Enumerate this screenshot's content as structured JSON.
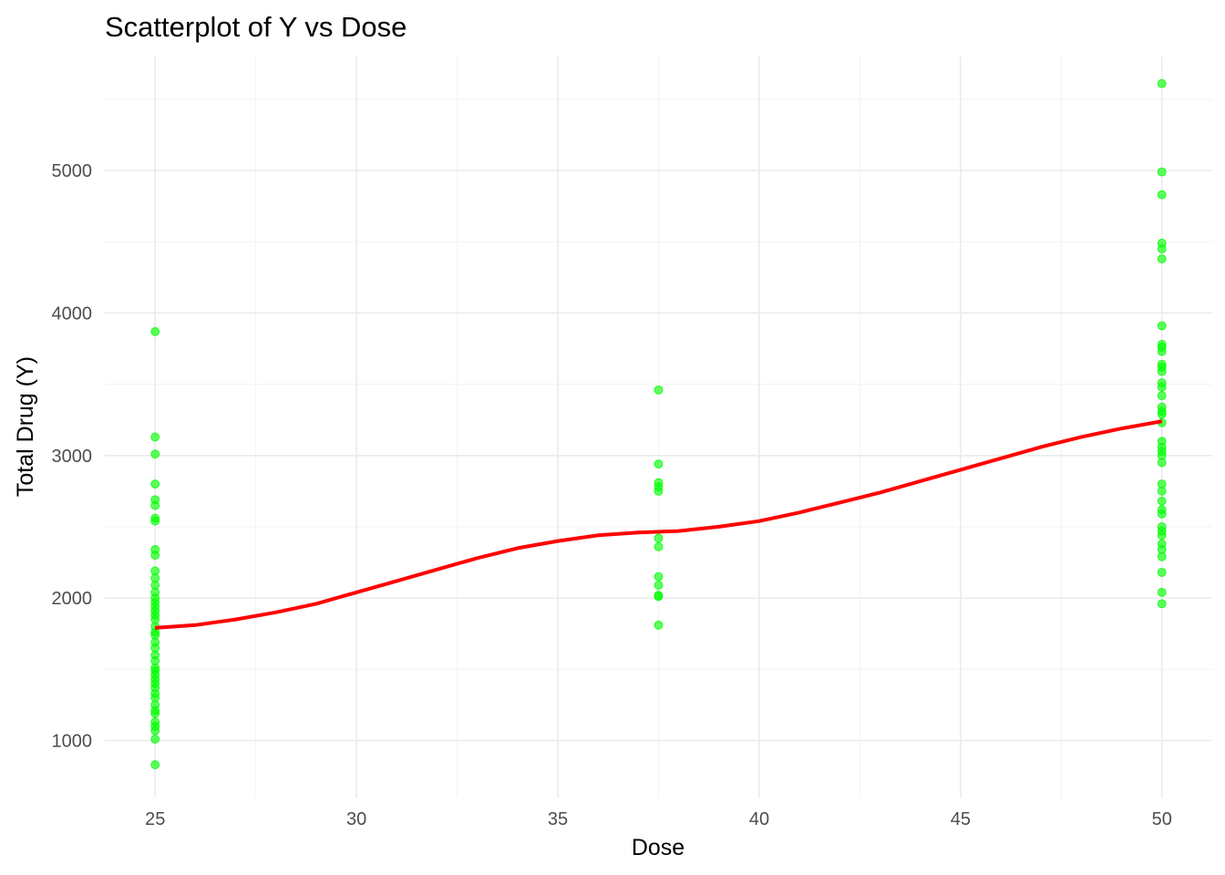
{
  "chart_data": {
    "type": "scatter",
    "title": "Scatterplot of Y vs Dose",
    "xlabel": "Dose",
    "ylabel": "Total Drug (Y)",
    "xlim": [
      23.75,
      51.25
    ],
    "ylim": [
      600,
      5800
    ],
    "x_ticks": [
      25,
      30,
      35,
      40,
      45,
      50
    ],
    "y_ticks": [
      1000,
      2000,
      3000,
      4000,
      5000
    ],
    "grid": true,
    "legend": "none",
    "point_color": "#00ff00",
    "line_color": "#ff0000",
    "series": [
      {
        "type": "points",
        "points": [
          [
            25,
            3870
          ],
          [
            25,
            3130
          ],
          [
            25,
            3010
          ],
          [
            25,
            2800
          ],
          [
            25,
            2690
          ],
          [
            25,
            2650
          ],
          [
            25,
            2560
          ],
          [
            25,
            2540
          ],
          [
            25,
            2340
          ],
          [
            25,
            2300
          ],
          [
            25,
            2190
          ],
          [
            25,
            2140
          ],
          [
            25,
            2090
          ],
          [
            25,
            2040
          ],
          [
            25,
            2000
          ],
          [
            25,
            1970
          ],
          [
            25,
            1940
          ],
          [
            25,
            1910
          ],
          [
            25,
            1880
          ],
          [
            25,
            1850
          ],
          [
            25,
            1800
          ],
          [
            25,
            1760
          ],
          [
            25,
            1740
          ],
          [
            25,
            1690
          ],
          [
            25,
            1650
          ],
          [
            25,
            1600
          ],
          [
            25,
            1560
          ],
          [
            25,
            1510
          ],
          [
            25,
            1490
          ],
          [
            25,
            1460
          ],
          [
            25,
            1430
          ],
          [
            25,
            1400
          ],
          [
            25,
            1370
          ],
          [
            25,
            1330
          ],
          [
            25,
            1300
          ],
          [
            25,
            1250
          ],
          [
            25,
            1210
          ],
          [
            25,
            1190
          ],
          [
            25,
            1130
          ],
          [
            25,
            1100
          ],
          [
            25,
            1070
          ],
          [
            25,
            1010
          ],
          [
            25,
            830
          ],
          [
            37.5,
            3460
          ],
          [
            37.5,
            2940
          ],
          [
            37.5,
            2810
          ],
          [
            37.5,
            2780
          ],
          [
            37.5,
            2750
          ],
          [
            37.5,
            2420
          ],
          [
            37.5,
            2360
          ],
          [
            37.5,
            2150
          ],
          [
            37.5,
            2090
          ],
          [
            37.5,
            2020
          ],
          [
            37.5,
            2010
          ],
          [
            37.5,
            1810
          ],
          [
            50,
            5610
          ],
          [
            50,
            4990
          ],
          [
            50,
            4830
          ],
          [
            50,
            4490
          ],
          [
            50,
            4450
          ],
          [
            50,
            4380
          ],
          [
            50,
            3910
          ],
          [
            50,
            3780
          ],
          [
            50,
            3760
          ],
          [
            50,
            3730
          ],
          [
            50,
            3640
          ],
          [
            50,
            3620
          ],
          [
            50,
            3590
          ],
          [
            50,
            3510
          ],
          [
            50,
            3480
          ],
          [
            50,
            3420
          ],
          [
            50,
            3340
          ],
          [
            50,
            3310
          ],
          [
            50,
            3290
          ],
          [
            50,
            3230
          ],
          [
            50,
            3100
          ],
          [
            50,
            3060
          ],
          [
            50,
            3030
          ],
          [
            50,
            3000
          ],
          [
            50,
            2950
          ],
          [
            50,
            2800
          ],
          [
            50,
            2750
          ],
          [
            50,
            2680
          ],
          [
            50,
            2620
          ],
          [
            50,
            2590
          ],
          [
            50,
            2500
          ],
          [
            50,
            2470
          ],
          [
            50,
            2440
          ],
          [
            50,
            2380
          ],
          [
            50,
            2340
          ],
          [
            50,
            2290
          ],
          [
            50,
            2180
          ],
          [
            50,
            2040
          ],
          [
            50,
            1960
          ]
        ]
      },
      {
        "type": "smooth_line",
        "points": [
          [
            25,
            1790
          ],
          [
            26,
            1810
          ],
          [
            27,
            1850
          ],
          [
            28,
            1900
          ],
          [
            29,
            1960
          ],
          [
            30,
            2040
          ],
          [
            31,
            2120
          ],
          [
            32,
            2200
          ],
          [
            33,
            2280
          ],
          [
            34,
            2350
          ],
          [
            35,
            2400
          ],
          [
            36,
            2440
          ],
          [
            37,
            2460
          ],
          [
            38,
            2470
          ],
          [
            39,
            2500
          ],
          [
            40,
            2540
          ],
          [
            41,
            2600
          ],
          [
            42,
            2670
          ],
          [
            43,
            2740
          ],
          [
            44,
            2820
          ],
          [
            45,
            2900
          ],
          [
            46,
            2980
          ],
          [
            47,
            3060
          ],
          [
            48,
            3130
          ],
          [
            49,
            3190
          ],
          [
            50,
            3240
          ]
        ]
      }
    ]
  }
}
